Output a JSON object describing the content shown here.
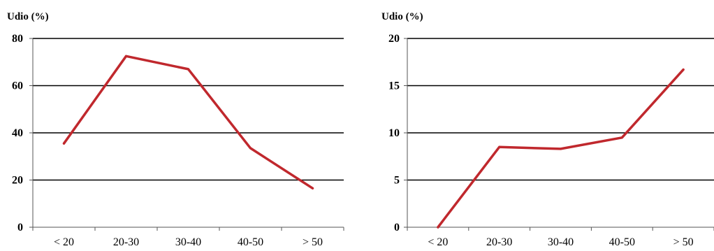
{
  "chart_data": [
    {
      "type": "line",
      "ylabel": "Udio (%)",
      "xlabel": "",
      "title": "",
      "categories": [
        "< 20",
        "20-30",
        "30-40",
        "40-50",
        "> 50"
      ],
      "yticks": [
        0,
        20,
        40,
        60,
        80
      ],
      "ylim": [
        0,
        80
      ],
      "grid": true,
      "series": [
        {
          "values": [
            35.5,
            72.5,
            67,
            33.5,
            16.5
          ],
          "color": "#c0282d"
        }
      ]
    },
    {
      "type": "line",
      "ylabel": "Udio (%)",
      "xlabel": "",
      "title": "",
      "categories": [
        "< 20",
        "20-30",
        "30-40",
        "40-50",
        "> 50"
      ],
      "yticks": [
        0,
        5,
        10,
        15,
        20
      ],
      "ylim": [
        0,
        20
      ],
      "grid": true,
      "series": [
        {
          "values": [
            0,
            8.5,
            8.3,
            9.5,
            16.7
          ],
          "color": "#c0282d"
        }
      ]
    }
  ]
}
